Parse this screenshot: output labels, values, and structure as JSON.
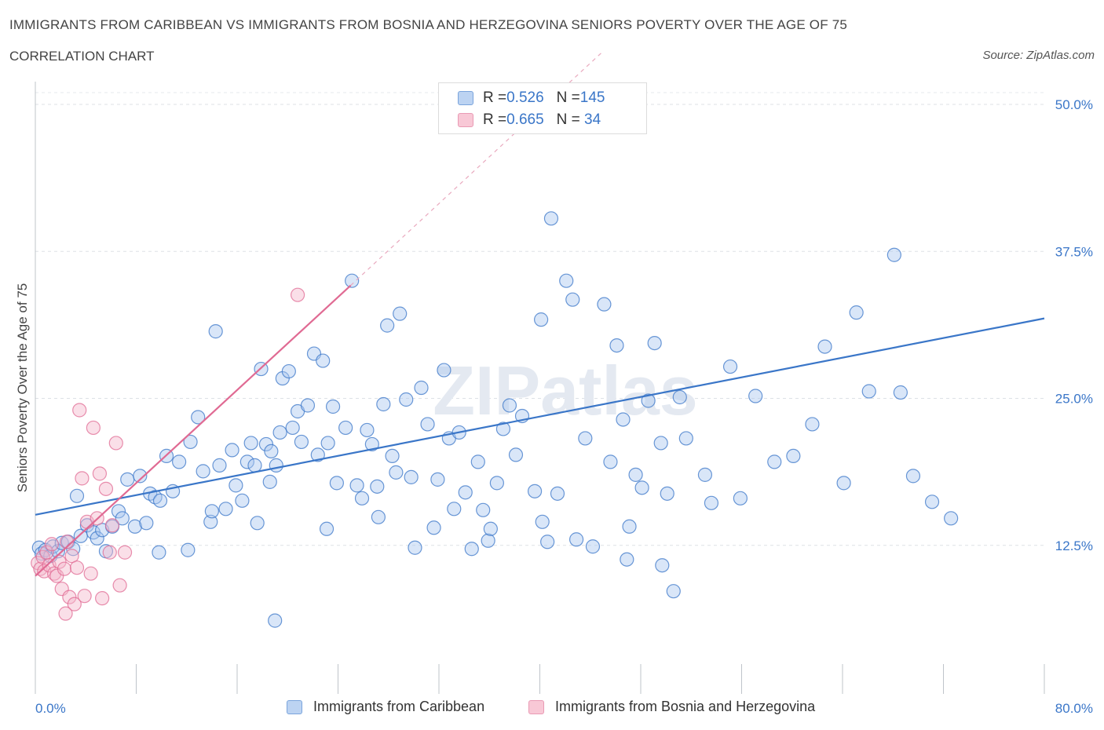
{
  "title": "IMMIGRANTS FROM CARIBBEAN VS IMMIGRANTS FROM BOSNIA AND HERZEGOVINA SENIORS POVERTY OVER THE AGE OF 75",
  "subtitle": "CORRELATION CHART",
  "source": "Source: ZipAtlas.com",
  "watermark": "ZIPatlas",
  "legend": {
    "rows": [
      {
        "r_label": "R = ",
        "r_value": "0.526",
        "n_label": "N = ",
        "n_value": "145",
        "color": "#3a76c8"
      },
      {
        "r_label": "R = ",
        "r_value": "0.665",
        "n_label": "N = ",
        "n_value": " 34",
        "color": "#e06a93"
      }
    ]
  },
  "chart_data": {
    "type": "scatter",
    "title": "",
    "xlabel": "",
    "ylabel": "Seniors Poverty Over the Age of 75",
    "xlim": [
      0,
      80
    ],
    "ylim": [
      0,
      50
    ],
    "x_tick_labels": [
      {
        "value": 0,
        "label": "0.0%"
      },
      {
        "value": 80,
        "label": "80.0%"
      }
    ],
    "y_tick_labels": [
      {
        "value": 12.5,
        "label": "12.5%"
      },
      {
        "value": 25,
        "label": "25.0%"
      },
      {
        "value": 37.5,
        "label": "37.5%"
      },
      {
        "value": 50,
        "label": "50.0%"
      }
    ],
    "grid": true,
    "legend_position": "top-center",
    "series": [
      {
        "name": "Immigrants from Caribbean",
        "color": "#3a76c8",
        "fill": "#aac8f0",
        "trend": {
          "x": [
            0,
            80
          ],
          "y": [
            15.1,
            31.8
          ],
          "style": "solid"
        },
        "points": [
          [
            0.3,
            12.3
          ],
          [
            0.5,
            11.8
          ],
          [
            0.8,
            12.1
          ],
          [
            1.2,
            11.6
          ],
          [
            1.4,
            12.4
          ],
          [
            1.8,
            12.0
          ],
          [
            2.1,
            12.7
          ],
          [
            2.6,
            12.8
          ],
          [
            3.0,
            12.2
          ],
          [
            3.6,
            13.3
          ],
          [
            4.1,
            14.2
          ],
          [
            4.6,
            13.6
          ],
          [
            4.9,
            13.1
          ],
          [
            5.3,
            13.8
          ],
          [
            5.6,
            12.0
          ],
          [
            6.1,
            14.1
          ],
          [
            6.6,
            15.4
          ],
          [
            6.9,
            14.8
          ],
          [
            7.3,
            18.1
          ],
          [
            7.9,
            14.1
          ],
          [
            8.3,
            18.4
          ],
          [
            8.8,
            14.4
          ],
          [
            9.1,
            16.9
          ],
          [
            9.5,
            16.6
          ],
          [
            9.9,
            16.3
          ],
          [
            10.4,
            20.1
          ],
          [
            10.9,
            17.1
          ],
          [
            11.4,
            19.6
          ],
          [
            12.1,
            12.1
          ],
          [
            12.3,
            21.3
          ],
          [
            12.9,
            23.4
          ],
          [
            13.3,
            18.8
          ],
          [
            13.9,
            14.5
          ],
          [
            14.3,
            30.7
          ],
          [
            14.6,
            19.3
          ],
          [
            15.1,
            15.6
          ],
          [
            15.6,
            20.6
          ],
          [
            15.9,
            17.6
          ],
          [
            16.4,
            16.3
          ],
          [
            16.8,
            19.6
          ],
          [
            17.1,
            21.2
          ],
          [
            17.4,
            19.3
          ],
          [
            17.9,
            27.5
          ],
          [
            18.3,
            21.1
          ],
          [
            18.6,
            17.9
          ],
          [
            19.1,
            19.3
          ],
          [
            19.4,
            22.1
          ],
          [
            19.6,
            26.7
          ],
          [
            20.1,
            27.3
          ],
          [
            20.4,
            22.5
          ],
          [
            20.8,
            23.9
          ],
          [
            21.1,
            21.3
          ],
          [
            21.6,
            24.4
          ],
          [
            22.1,
            28.8
          ],
          [
            22.4,
            20.2
          ],
          [
            22.8,
            28.2
          ],
          [
            23.2,
            21.2
          ],
          [
            23.6,
            24.3
          ],
          [
            23.9,
            17.8
          ],
          [
            24.6,
            22.5
          ],
          [
            25.1,
            35.0
          ],
          [
            25.5,
            17.6
          ],
          [
            25.9,
            16.5
          ],
          [
            26.3,
            22.3
          ],
          [
            26.7,
            21.1
          ],
          [
            27.1,
            17.5
          ],
          [
            27.6,
            24.5
          ],
          [
            27.9,
            31.2
          ],
          [
            28.3,
            20.1
          ],
          [
            28.6,
            18.7
          ],
          [
            28.9,
            32.2
          ],
          [
            29.4,
            24.9
          ],
          [
            29.8,
            18.3
          ],
          [
            30.1,
            12.3
          ],
          [
            30.6,
            25.9
          ],
          [
            31.1,
            22.8
          ],
          [
            31.6,
            14.0
          ],
          [
            31.9,
            18.1
          ],
          [
            32.4,
            27.4
          ],
          [
            32.8,
            21.6
          ],
          [
            33.6,
            22.1
          ],
          [
            34.1,
            17.0
          ],
          [
            35.1,
            19.6
          ],
          [
            35.5,
            15.5
          ],
          [
            35.9,
            12.9
          ],
          [
            36.6,
            17.8
          ],
          [
            37.1,
            22.4
          ],
          [
            37.6,
            24.4
          ],
          [
            38.1,
            20.2
          ],
          [
            38.6,
            23.5
          ],
          [
            39.6,
            17.1
          ],
          [
            40.1,
            31.7
          ],
          [
            40.6,
            12.8
          ],
          [
            40.9,
            40.3
          ],
          [
            41.4,
            16.9
          ],
          [
            42.1,
            35.0
          ],
          [
            42.6,
            33.4
          ],
          [
            42.9,
            13.0
          ],
          [
            43.6,
            21.6
          ],
          [
            45.1,
            33.0
          ],
          [
            45.6,
            19.6
          ],
          [
            46.1,
            29.5
          ],
          [
            46.6,
            23.2
          ],
          [
            47.1,
            14.1
          ],
          [
            47.6,
            18.5
          ],
          [
            48.1,
            17.4
          ],
          [
            48.6,
            24.8
          ],
          [
            49.1,
            29.7
          ],
          [
            49.6,
            21.2
          ],
          [
            50.1,
            16.9
          ],
          [
            50.6,
            8.6
          ],
          [
            51.1,
            25.1
          ],
          [
            51.6,
            21.6
          ],
          [
            53.1,
            18.5
          ],
          [
            53.6,
            16.1
          ],
          [
            55.1,
            27.7
          ],
          [
            55.9,
            16.5
          ],
          [
            57.1,
            25.2
          ],
          [
            58.6,
            19.6
          ],
          [
            60.1,
            20.1
          ],
          [
            61.6,
            22.8
          ],
          [
            62.6,
            29.4
          ],
          [
            64.1,
            17.8
          ],
          [
            65.1,
            32.3
          ],
          [
            66.1,
            25.6
          ],
          [
            68.1,
            37.2
          ],
          [
            68.6,
            25.5
          ],
          [
            69.6,
            18.4
          ],
          [
            71.1,
            16.2
          ],
          [
            72.6,
            14.8
          ],
          [
            3.3,
            16.7
          ],
          [
            19.0,
            6.1
          ],
          [
            23.1,
            13.9
          ],
          [
            33.2,
            15.6
          ],
          [
            14.0,
            15.4
          ],
          [
            17.6,
            14.4
          ],
          [
            27.2,
            14.9
          ],
          [
            36.1,
            13.9
          ],
          [
            9.8,
            11.9
          ],
          [
            18.7,
            20.5
          ],
          [
            34.6,
            12.2
          ],
          [
            46.9,
            11.3
          ],
          [
            49.7,
            10.8
          ],
          [
            40.2,
            14.5
          ],
          [
            44.2,
            12.4
          ]
        ]
      },
      {
        "name": "Immigrants from Bosnia and Herzegovina",
        "color": "#e06a93",
        "fill": "#f5b8cb",
        "trend": {
          "x": [
            0,
            25
          ],
          "y": [
            9.9,
            34.6
          ],
          "style": "solid",
          "dashed_extension_to": [
            45,
            54.5
          ]
        },
        "points": [
          [
            0.2,
            11.0
          ],
          [
            0.4,
            10.5
          ],
          [
            0.6,
            11.5
          ],
          [
            0.7,
            10.3
          ],
          [
            0.9,
            11.9
          ],
          [
            1.1,
            10.8
          ],
          [
            1.3,
            12.6
          ],
          [
            1.5,
            10.1
          ],
          [
            1.7,
            9.9
          ],
          [
            1.9,
            11.1
          ],
          [
            2.1,
            8.8
          ],
          [
            2.3,
            10.5
          ],
          [
            2.5,
            12.8
          ],
          [
            2.7,
            8.1
          ],
          [
            2.9,
            11.6
          ],
          [
            3.1,
            7.5
          ],
          [
            3.3,
            10.6
          ],
          [
            3.5,
            24.0
          ],
          [
            3.7,
            18.2
          ],
          [
            3.9,
            8.2
          ],
          [
            4.1,
            14.5
          ],
          [
            4.4,
            10.1
          ],
          [
            4.6,
            22.5
          ],
          [
            4.9,
            14.8
          ],
          [
            5.1,
            18.6
          ],
          [
            5.3,
            8.0
          ],
          [
            5.6,
            17.3
          ],
          [
            5.9,
            11.9
          ],
          [
            6.1,
            14.2
          ],
          [
            6.4,
            21.2
          ],
          [
            6.7,
            9.1
          ],
          [
            7.1,
            11.9
          ],
          [
            20.8,
            33.8
          ],
          [
            2.4,
            6.7
          ]
        ]
      }
    ]
  }
}
